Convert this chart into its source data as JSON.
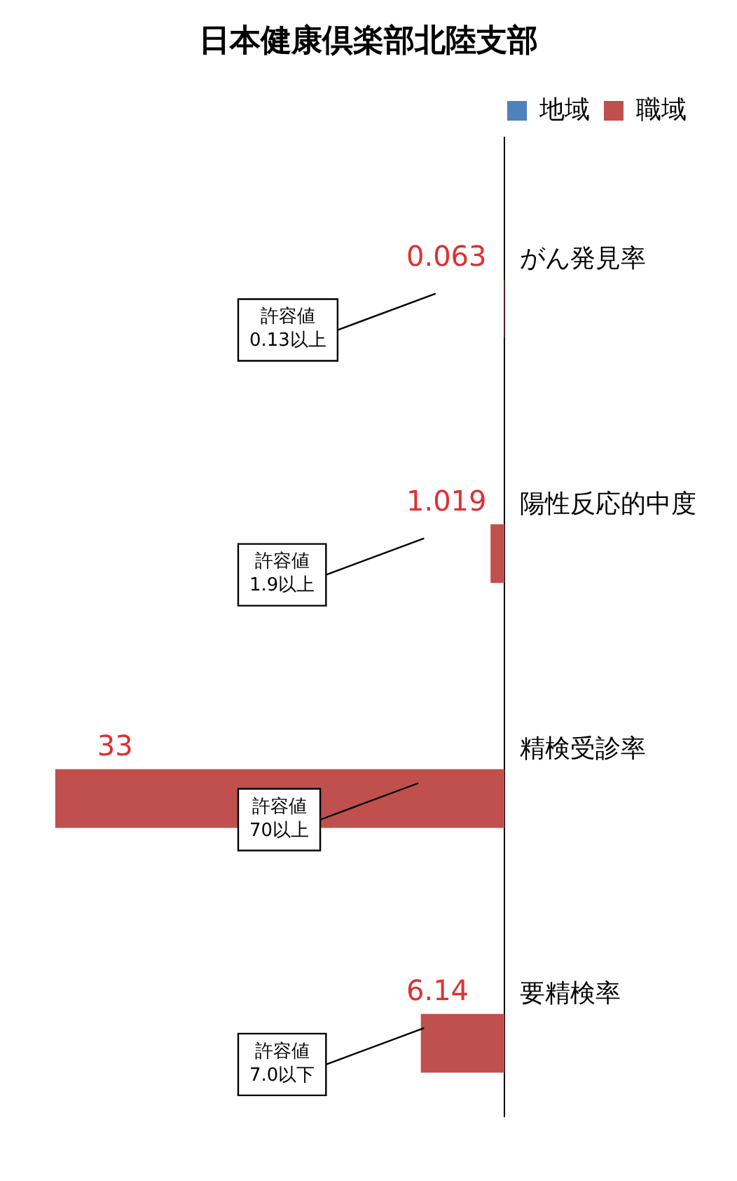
{
  "chart_data": {
    "type": "bar",
    "orientation": "horizontal",
    "title": "日本健康倶楽部北陸支部",
    "categories": [
      "がん発見率",
      "陽性反応的中度",
      "精検受診率",
      "要精検率"
    ],
    "series": [
      {
        "name": "地域",
        "color": "#4f81bd",
        "values": [
          null,
          null,
          null,
          null
        ]
      },
      {
        "name": "職域",
        "color": "#c0504d",
        "values": [
          0.063,
          1.019,
          33,
          6.14
        ]
      }
    ],
    "data_labels": true,
    "legend": "top right",
    "grid": false,
    "annotations": [
      "許容値 0.13以上",
      "許容値 1.9以上",
      "許容値 70以上",
      "許容値 7.0以下"
    ]
  }
}
